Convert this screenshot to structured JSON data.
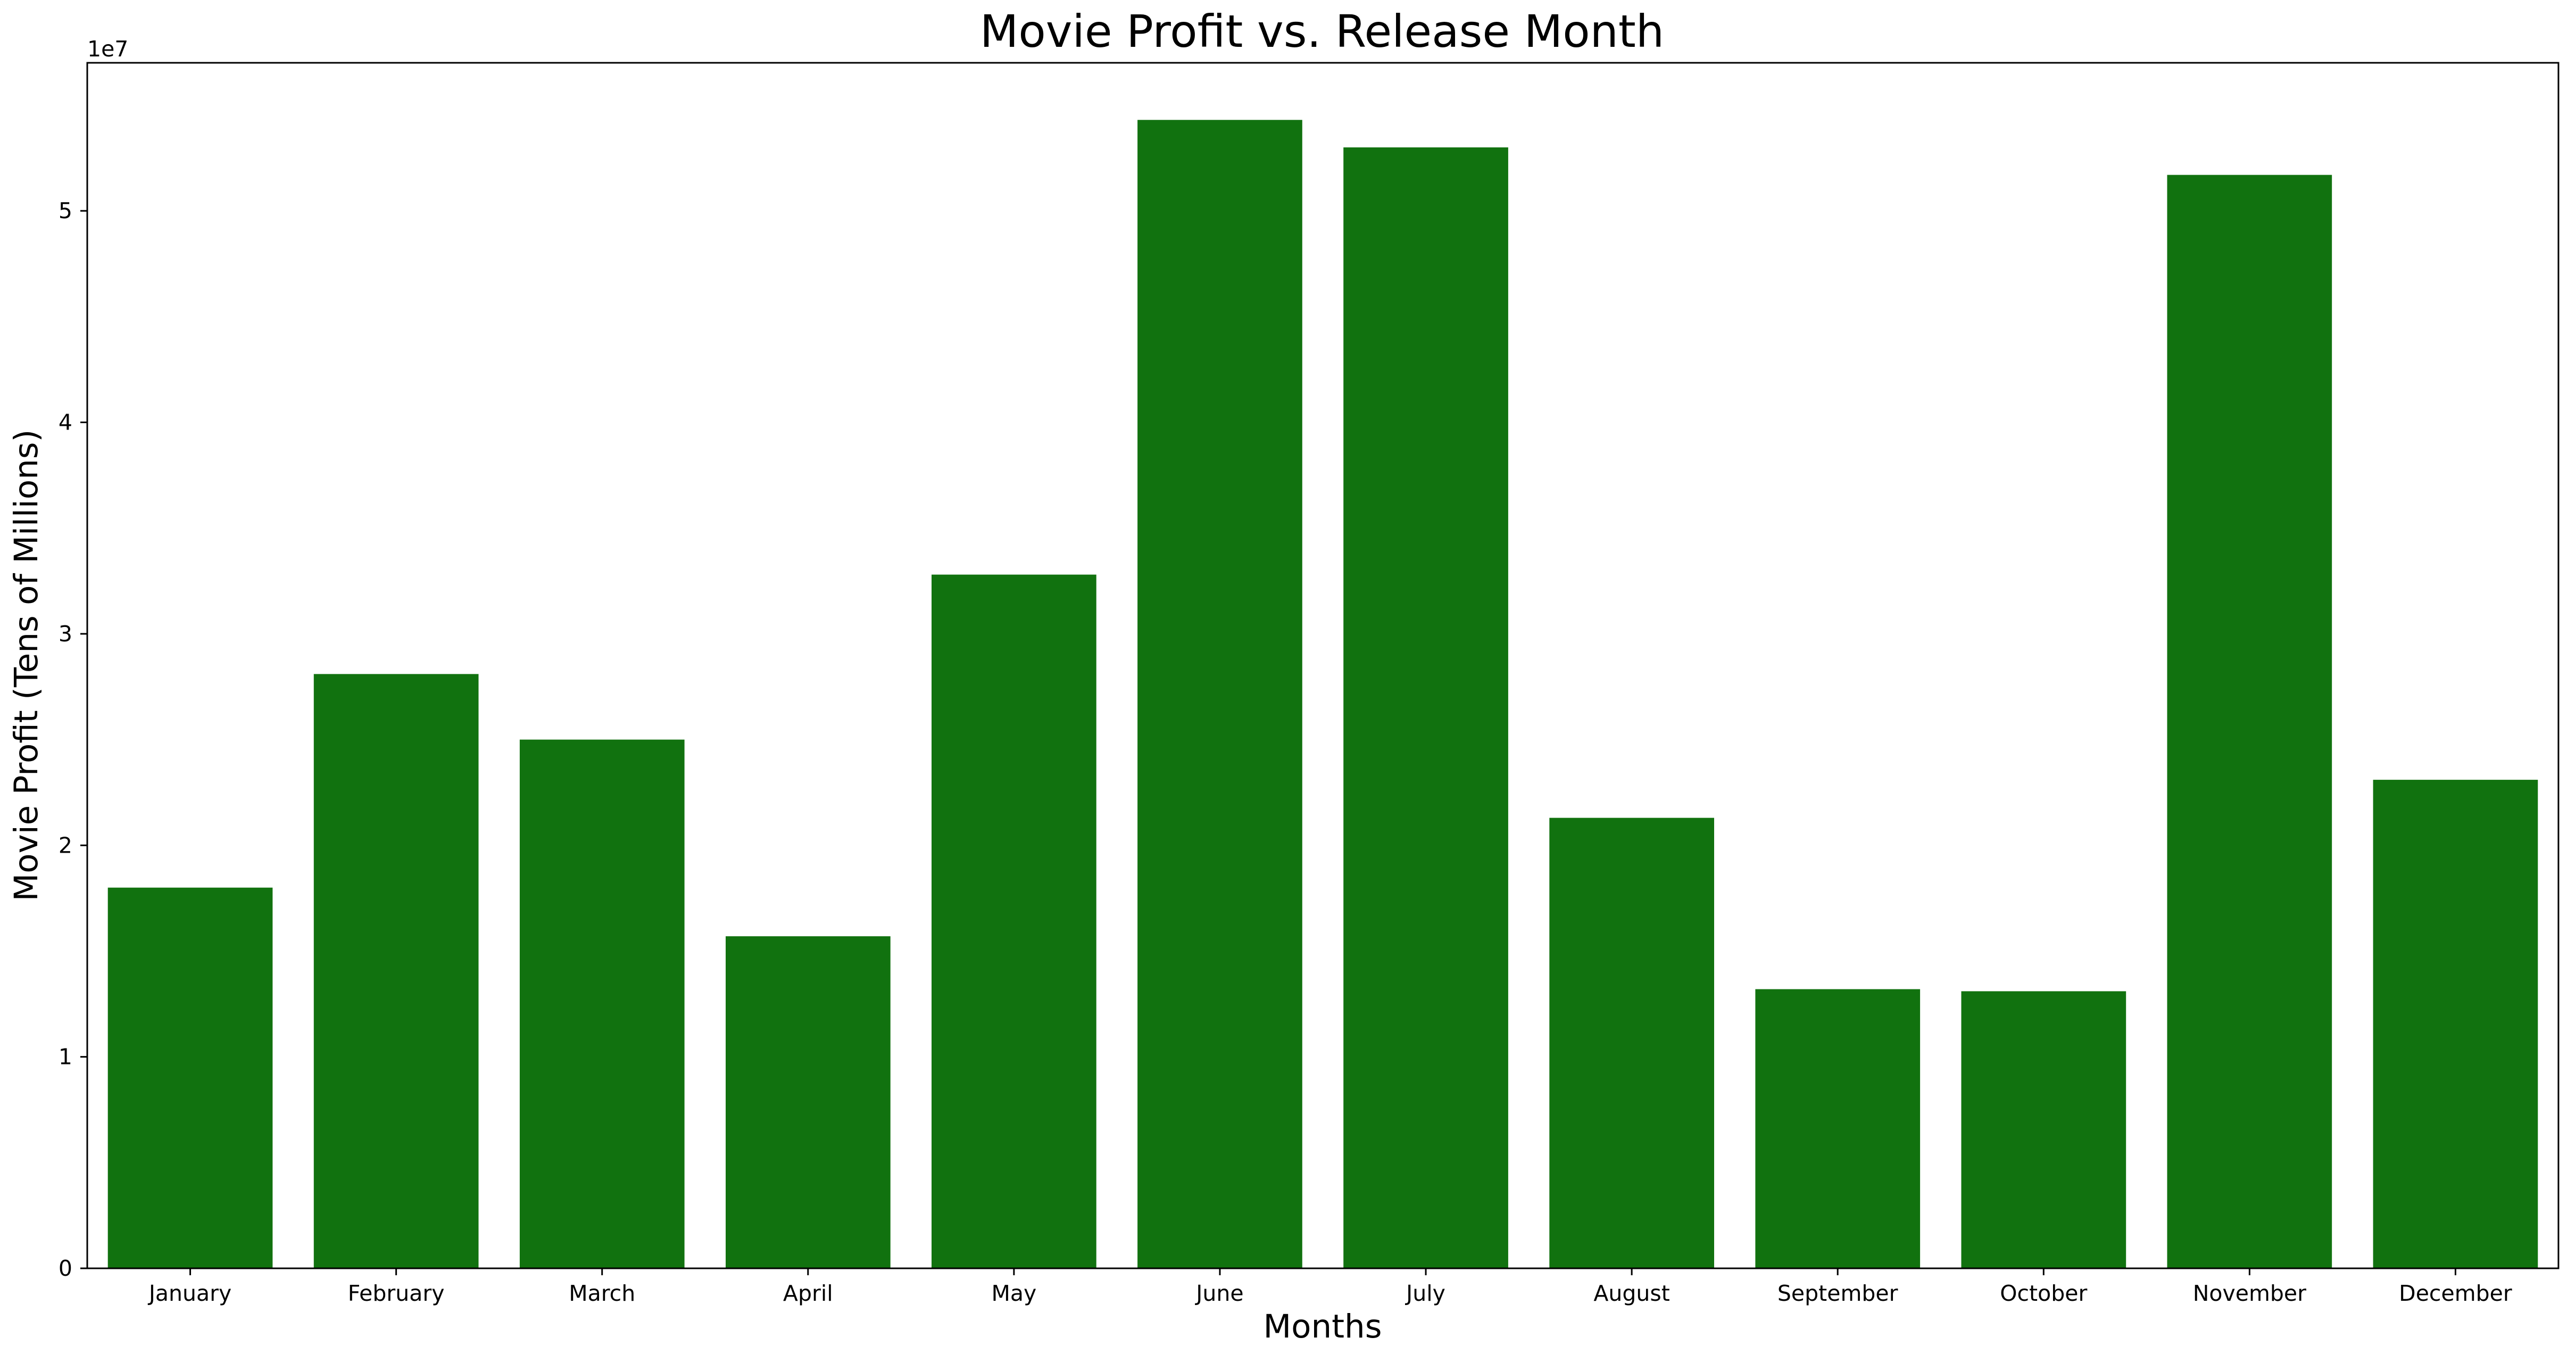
{
  "chart_data": {
    "type": "bar",
    "title": "Movie Profit vs. Release Month",
    "xlabel": "Months",
    "ylabel": "Movie Profit (Tens of Millions)",
    "y_offset_label": "1e7",
    "categories": [
      "January",
      "February",
      "March",
      "April",
      "May",
      "June",
      "July",
      "August",
      "September",
      "October",
      "November",
      "December"
    ],
    "values": [
      18000000,
      28100000,
      25000000,
      15700000,
      32800000,
      54300000,
      53000000,
      21300000,
      13200000,
      13100000,
      51700000,
      23100000
    ],
    "ylim": [
      0,
      57000000
    ],
    "yticks": [
      0,
      10000000,
      20000000,
      30000000,
      40000000,
      50000000
    ],
    "ytick_labels": [
      "0",
      "1",
      "2",
      "3",
      "4",
      "5"
    ],
    "bar_color": "#11720f",
    "grid": false,
    "legend": "none"
  }
}
